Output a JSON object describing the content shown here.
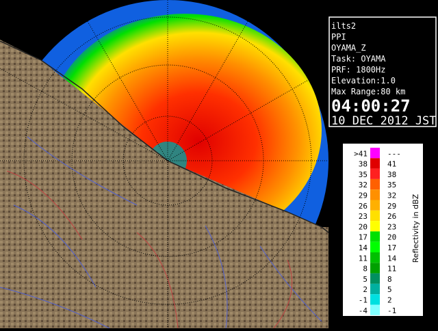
{
  "panel": {
    "lines": [
      "ilts2",
      "PPI",
      "OYAMA_Z",
      "Task: OYAMA",
      "PRF: 1800Hz",
      "Elevation:1.0",
      "Max Range:80 km"
    ],
    "time": "04:00:27",
    "date": "10 DEC 2012 JST"
  },
  "legend": {
    "title": "Reflectivity in dBZ",
    "rows": [
      {
        "low": ">41",
        "high": "---",
        "color": "#ff00ff"
      },
      {
        "low": "38",
        "high": "41",
        "color": "#e00000"
      },
      {
        "low": "35",
        "high": "38",
        "color": "#ff2020"
      },
      {
        "low": "32",
        "high": "35",
        "color": "#ff6000"
      },
      {
        "low": "29",
        "high": "32",
        "color": "#ff9000"
      },
      {
        "low": "26",
        "high": "29",
        "color": "#ffb000"
      },
      {
        "low": "23",
        "high": "26",
        "color": "#ffe000"
      },
      {
        "low": "20",
        "high": "23",
        "color": "#ffff00"
      },
      {
        "low": "17",
        "high": "20",
        "color": "#00e000"
      },
      {
        "low": "14",
        "high": "17",
        "color": "#00ff00"
      },
      {
        "low": "11",
        "high": "14",
        "color": "#00c000"
      },
      {
        "low": "8",
        "high": "11",
        "color": "#00a000"
      },
      {
        "low": "5",
        "high": "8",
        "color": "#009060"
      },
      {
        "low": "2",
        "high": "5",
        "color": "#00b0a0"
      },
      {
        "low": "-1",
        "high": "2",
        "color": "#00e0e0"
      },
      {
        "low": "-4",
        "high": "-1",
        "color": "#80ffff"
      }
    ]
  }
}
